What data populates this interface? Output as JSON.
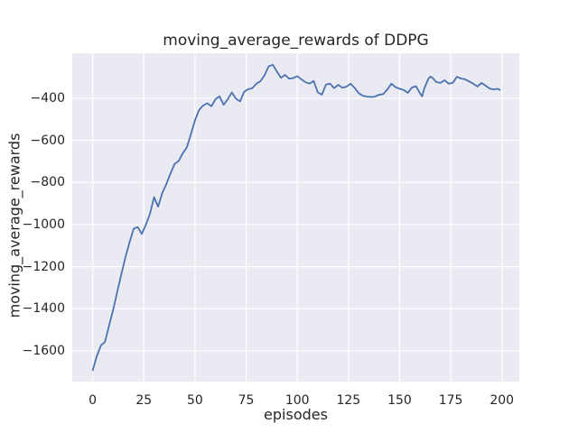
{
  "figure": {
    "background": "#ffffff",
    "plot_background": "#eaeaf2",
    "grid_color": "#ffffff",
    "text_color": "#262626"
  },
  "chart_data": {
    "type": "line",
    "title": "moving_average_rewards of DDPG",
    "xlabel": "episodes",
    "ylabel": "moving_average_rewards",
    "legend": "none",
    "grid": true,
    "style": "seaborn-darkgrid",
    "line_color": "#4c72b0",
    "line_width": 1.8,
    "xlim": [
      -10,
      208.5
    ],
    "ylim": [
      -1746,
      -186
    ],
    "x_ticks": [
      0,
      25,
      50,
      75,
      100,
      125,
      150,
      175,
      200
    ],
    "x_tick_labels": [
      "0",
      "25",
      "50",
      "75",
      "100",
      "125",
      "150",
      "175",
      "200"
    ],
    "y_ticks": [
      -400,
      -600,
      -800,
      -1000,
      -1200,
      -1400,
      -1600
    ],
    "y_tick_labels": [
      "−400",
      "−600",
      "−800",
      "−1000",
      "−1200",
      "−1400",
      "−1600"
    ],
    "series": [
      {
        "name": "moving_average_rewards",
        "x": [
          0,
          2,
          4,
          6,
          8,
          10,
          12,
          14,
          16,
          18,
          20,
          22,
          24,
          26,
          28,
          30,
          32,
          34,
          36,
          38,
          40,
          42,
          44,
          46,
          48,
          50,
          52,
          54,
          56,
          58,
          60,
          62,
          64,
          66,
          68,
          70,
          72,
          74,
          76,
          78,
          80,
          82,
          84,
          86,
          88,
          90,
          92,
          94,
          96,
          98,
          100,
          102,
          104,
          106,
          108,
          110,
          112,
          114,
          116,
          118,
          120,
          122,
          124,
          126,
          128,
          130,
          132,
          134,
          136,
          138,
          140,
          142,
          144,
          146,
          148,
          150,
          152,
          154,
          156,
          158,
          160,
          161,
          162,
          164,
          165,
          166,
          168,
          170,
          172,
          174,
          176,
          178,
          180,
          182,
          184,
          186,
          188,
          190,
          192,
          194,
          196,
          198,
          199
        ],
        "y": [
          -1692,
          -1625,
          -1575,
          -1558,
          -1480,
          -1405,
          -1320,
          -1235,
          -1155,
          -1085,
          -1020,
          -1012,
          -1045,
          -1000,
          -948,
          -870,
          -915,
          -850,
          -808,
          -758,
          -712,
          -698,
          -662,
          -633,
          -570,
          -505,
          -455,
          -434,
          -424,
          -438,
          -404,
          -391,
          -431,
          -405,
          -372,
          -402,
          -415,
          -370,
          -357,
          -352,
          -331,
          -319,
          -290,
          -248,
          -241,
          -272,
          -303,
          -289,
          -307,
          -304,
          -295,
          -310,
          -324,
          -330,
          -318,
          -372,
          -383,
          -335,
          -331,
          -352,
          -336,
          -350,
          -345,
          -331,
          -350,
          -376,
          -388,
          -392,
          -394,
          -392,
          -383,
          -380,
          -358,
          -331,
          -347,
          -355,
          -361,
          -374,
          -349,
          -343,
          -377,
          -391,
          -355,
          -308,
          -297,
          -302,
          -323,
          -327,
          -314,
          -331,
          -326,
          -298,
          -306,
          -310,
          -320,
          -331,
          -344,
          -327,
          -340,
          -354,
          -358,
          -355,
          -361
        ]
      }
    ]
  }
}
